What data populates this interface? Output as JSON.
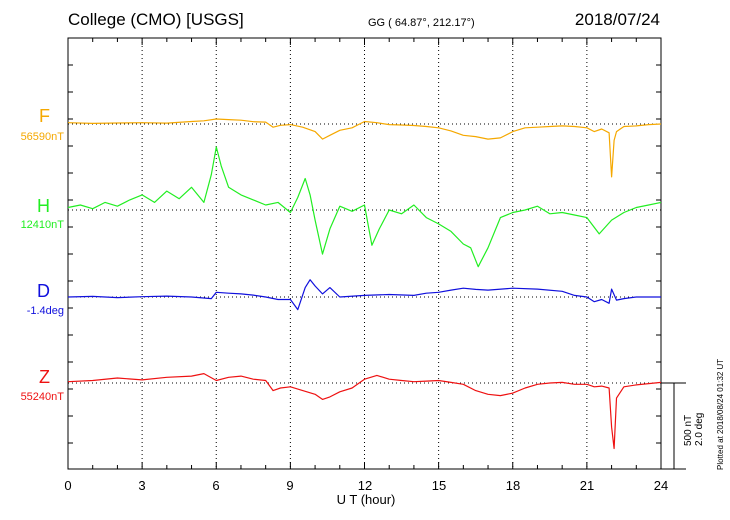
{
  "header": {
    "station": "College (CMO)  [USGS]",
    "coords": "GG ( 64.87°, 212.17°)",
    "date": "2018/07/24"
  },
  "channels": [
    {
      "letter": "F",
      "base": "56590nT",
      "color": "#f5a800"
    },
    {
      "letter": "H",
      "base": "12410nT",
      "color": "#22ee22"
    },
    {
      "letter": "D",
      "base": "-1.4deg",
      "color": "#1010dd"
    },
    {
      "letter": "Z",
      "base": "55240nT",
      "color": "#ee1111"
    }
  ],
  "scale": {
    "line1": "500 nT",
    "line2": "2.0 deg"
  },
  "plotted": "Plotted at 2018/08/24 01:32 UT",
  "chart_data": {
    "type": "line",
    "xlabel": "U T (hour)",
    "xlim": [
      0,
      24
    ],
    "xticks": [
      "0",
      "3",
      "6",
      "9",
      "12",
      "15",
      "18",
      "21",
      "24"
    ],
    "grid": true,
    "series": [
      {
        "name": "F",
        "unit": "nT",
        "x": [
          0,
          1,
          2,
          3,
          4,
          5,
          5.5,
          6,
          6.5,
          7,
          7.5,
          8,
          8.3,
          8.6,
          9,
          9.5,
          10,
          10.3,
          10.6,
          11,
          11.5,
          12,
          12.5,
          13,
          13.5,
          14,
          14.5,
          15,
          15.5,
          16,
          16.5,
          17,
          17.5,
          18,
          18.5,
          19,
          19.5,
          20,
          20.5,
          21,
          21.3,
          21.6,
          21.9,
          22.0,
          22.1,
          22.2,
          22.5,
          23,
          23.5,
          24
        ],
        "y": [
          10,
          5,
          8,
          10,
          7,
          20,
          25,
          40,
          35,
          30,
          18,
          15,
          -25,
          -10,
          -5,
          -25,
          -60,
          -120,
          -90,
          -50,
          -30,
          20,
          10,
          -5,
          -8,
          -12,
          -20,
          -30,
          -55,
          -90,
          -100,
          -120,
          -110,
          -60,
          -30,
          -25,
          -20,
          -15,
          -20,
          -30,
          -60,
          -40,
          -70,
          -420,
          -130,
          -60,
          -20,
          -15,
          -5,
          0
        ]
      },
      {
        "name": "H",
        "unit": "nT",
        "x": [
          0,
          0.5,
          1,
          1.5,
          2,
          2.5,
          3,
          3.5,
          4,
          4.5,
          5,
          5.5,
          5.8,
          6.0,
          6.2,
          6.5,
          7,
          7.5,
          8,
          8.5,
          9,
          9.3,
          9.6,
          9.8,
          10,
          10.3,
          10.6,
          11,
          11.5,
          12,
          12.3,
          12.6,
          13,
          13.5,
          14,
          14.5,
          15,
          15.5,
          16,
          16.3,
          16.6,
          17,
          17.5,
          18,
          18.5,
          19,
          19.5,
          20,
          20.5,
          21,
          21.5,
          22,
          22.5,
          23,
          23.5,
          24
        ],
        "y": [
          20,
          40,
          10,
          60,
          30,
          80,
          120,
          60,
          150,
          90,
          180,
          60,
          280,
          500,
          350,
          180,
          120,
          80,
          40,
          60,
          -20,
          100,
          250,
          120,
          -80,
          -350,
          -150,
          30,
          -10,
          40,
          -280,
          -150,
          0,
          -30,
          40,
          -60,
          -110,
          -170,
          -270,
          -300,
          -450,
          -300,
          -60,
          -20,
          0,
          30,
          -30,
          -20,
          -40,
          -60,
          -190,
          -80,
          -20,
          20,
          40,
          60
        ]
      },
      {
        "name": "D",
        "unit": "deg",
        "x": [
          0,
          1,
          2,
          3,
          4,
          5,
          5.8,
          6,
          6.5,
          7,
          7.5,
          8,
          8.5,
          9,
          9.3,
          9.6,
          9.8,
          10,
          10.3,
          10.6,
          11,
          12,
          13,
          14,
          14.5,
          15,
          15.5,
          16,
          16.5,
          17,
          18,
          19,
          20,
          20.5,
          21,
          21.3,
          21.6,
          21.9,
          22.0,
          22.2,
          22.5,
          23,
          24
        ],
        "y": [
          0,
          0.02,
          -0.02,
          0.01,
          0.03,
          0.0,
          -0.05,
          0.15,
          0.12,
          0.1,
          0.06,
          0.0,
          -0.08,
          -0.08,
          -0.4,
          0.3,
          0.55,
          0.35,
          0.1,
          0.3,
          0.0,
          0.05,
          0.08,
          0.05,
          0.12,
          0.15,
          0.22,
          0.28,
          0.24,
          0.22,
          0.28,
          0.25,
          0.18,
          0.05,
          0.0,
          -0.15,
          -0.08,
          -0.2,
          0.25,
          -0.1,
          -0.05,
          0.0,
          0.0
        ]
      },
      {
        "name": "Z",
        "unit": "nT",
        "x": [
          0,
          1,
          2,
          3,
          4,
          5,
          5.5,
          6,
          6.5,
          7,
          7.5,
          8,
          8.3,
          8.6,
          9,
          9.5,
          10,
          10.3,
          10.6,
          11,
          11.5,
          12,
          12.5,
          13,
          13.5,
          14,
          14.5,
          15,
          15.5,
          16,
          16.5,
          17,
          17.5,
          18,
          18.5,
          19,
          19.5,
          20,
          20.5,
          21,
          21.3,
          21.6,
          21.9,
          22.0,
          22.1,
          22.2,
          22.5,
          23,
          23.5,
          24
        ],
        "y": [
          10,
          20,
          40,
          25,
          45,
          55,
          75,
          20,
          45,
          55,
          30,
          20,
          -60,
          -40,
          -30,
          -60,
          -90,
          -130,
          -110,
          -70,
          -40,
          30,
          60,
          30,
          20,
          10,
          15,
          20,
          5,
          -10,
          -60,
          -90,
          -100,
          -80,
          -40,
          -10,
          0,
          5,
          -10,
          -10,
          -30,
          -25,
          -40,
          -350,
          -520,
          -120,
          -30,
          -15,
          -5,
          5
        ]
      }
    ]
  }
}
